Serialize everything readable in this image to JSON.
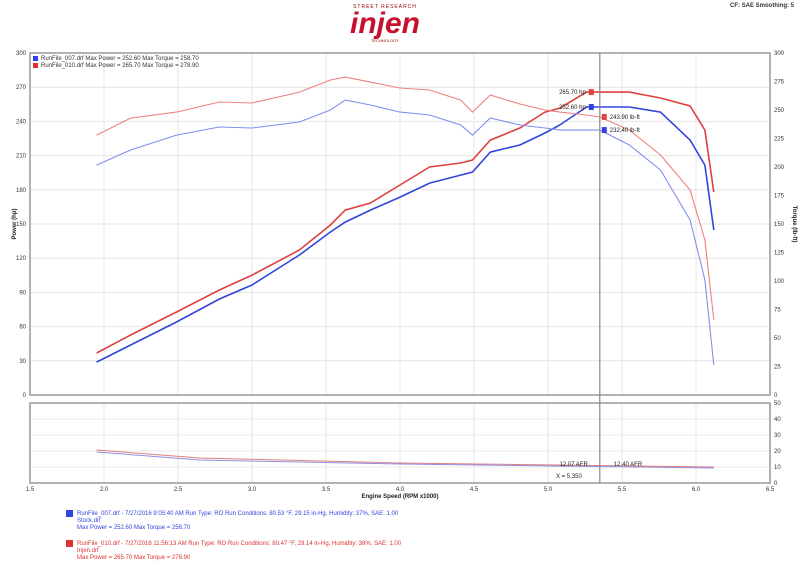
{
  "header": {
    "logo_text": "injen",
    "logo_top": "STREET RESEARCH",
    "logo_sub": "TECHNOLOGY",
    "info": "CF: SAE   Smoothing: 5"
  },
  "legend": [
    {
      "file": "RunFile_007.drf",
      "text": "RunFile_007.drf Max Power = 252.60    Max Torque = 258.70",
      "color": "#3344dd"
    },
    {
      "file": "RunFile_010.drf",
      "text": "RunFile_010.drf Max Power = 265.70    Max Torque = 278.90",
      "color": "#dd3333"
    }
  ],
  "chart_data": {
    "type": "line",
    "xlabel": "Engine Speed (RPM x1000)",
    "ylabel": "Power (hp)",
    "y2label": "Torque (lb-ft)",
    "xlim": [
      1.5,
      6.5
    ],
    "ylim": [
      0,
      300
    ],
    "y2lim": [
      0,
      300
    ],
    "xticks": [
      "1.5",
      "2.0",
      "2.5",
      "3.0",
      "3.5",
      "4.0",
      "4.5",
      "5.0",
      "5.5",
      "6.0",
      "6.5"
    ],
    "yticks": [
      "0",
      "30",
      "60",
      "90",
      "120",
      "150",
      "180",
      "210",
      "240",
      "270",
      "300"
    ],
    "y2ticks": [
      "0",
      "25",
      "50",
      "75",
      "100",
      "125",
      "150",
      "175",
      "200",
      "225",
      "250",
      "275",
      "300"
    ],
    "grid": true,
    "legend_position": "top-left",
    "x": [
      1.95,
      2.18,
      2.49,
      2.78,
      3.0,
      3.32,
      3.53,
      3.63,
      3.8,
      4.0,
      4.2,
      4.41,
      4.49,
      4.61,
      4.81,
      4.98,
      5.08,
      5.26,
      5.35,
      5.55,
      5.76,
      5.96,
      6.06,
      6.12
    ],
    "series": [
      {
        "name": "RunFile_010.drf",
        "quantity": "power",
        "axis": "left",
        "color": "#e04040",
        "values": [
          36.8,
          52.6,
          72.8,
          92.1,
          105.2,
          127.2,
          149.1,
          162.2,
          168.4,
          184.2,
          200.0,
          203.5,
          206.1,
          223.6,
          234.2,
          248.2,
          251.7,
          265.7,
          265.7,
          265.7,
          260.5,
          253.5,
          232.4,
          178.0
        ]
      },
      {
        "name": "RunFile_007.drf",
        "quantity": "power",
        "axis": "left",
        "color": "#3344dd",
        "values": [
          28.9,
          43.9,
          64.0,
          84.2,
          96.5,
          122.8,
          143.0,
          151.7,
          162.2,
          173.6,
          185.9,
          192.9,
          195.6,
          213.1,
          219.3,
          229.8,
          236.8,
          252.6,
          252.6,
          252.6,
          248.2,
          223.6,
          201.7,
          144.7
        ]
      },
      {
        "name": "RunFile_010.drf",
        "quantity": "torque",
        "axis": "right",
        "color": "#f08080",
        "values": [
          228.0,
          242.9,
          248.2,
          257.0,
          256.1,
          265.7,
          276.3,
          278.9,
          274.5,
          269.3,
          267.5,
          258.7,
          248.2,
          263.2,
          255.3,
          250.0,
          248.2,
          245.6,
          243.9,
          232.4,
          210.5,
          179.8,
          136.0,
          65.8
        ]
      },
      {
        "name": "RunFile_007.drf",
        "quantity": "torque",
        "axis": "right",
        "color": "#8090ee",
        "values": [
          201.7,
          214.9,
          228.0,
          235.1,
          234.2,
          239.5,
          250.0,
          258.7,
          254.4,
          248.2,
          245.6,
          236.8,
          228.0,
          243.0,
          236.8,
          234.2,
          232.4,
          232.4,
          232.4,
          219.3,
          197.4,
          153.5,
          100.9,
          26.3
        ]
      }
    ],
    "cursor_x": 5.35,
    "annotations": [
      {
        "text": "265.70 hp",
        "color": "#e04040"
      },
      {
        "text": "252.60 hp",
        "color": "#3344dd"
      },
      {
        "text": "243.90 lb-ft",
        "color": "#e04040"
      },
      {
        "text": "232.40 lb-ft",
        "color": "#3344dd"
      }
    ],
    "lower": {
      "ylim": [
        0,
        50
      ],
      "yticks": [
        "0",
        "10",
        "20",
        "30",
        "40",
        "50"
      ],
      "x": [
        1.95,
        2.65,
        4.0,
        6.12
      ],
      "series": [
        {
          "name": "RunFile_010.drf",
          "color": "#e08080",
          "values": [
            20.6,
            15.6,
            12.5,
            10.0
          ]
        },
        {
          "name": "RunFile_007.drf",
          "color": "#9090e0",
          "values": [
            19.4,
            14.4,
            11.9,
            9.4
          ]
        }
      ],
      "annotations": [
        {
          "text": "12.07 AFR",
          "color": "#3344dd"
        },
        {
          "text": "12.40 AFR",
          "color": "#e04040"
        },
        {
          "text": "X = 5.350",
          "color": "#222"
        }
      ]
    }
  },
  "footer": [
    {
      "line1": "RunFile_007.drf - 7/27/2016 9:05:40 AM  Run Type: RO  Run Conditions: 80.53 °F, 29.15 in-Hg, Humidity: 37%, SAE: 1.00",
      "line2": "Stock.drf",
      "line3": "Max Power = 252.60   Max Torque = 258.70",
      "color": "#3344dd"
    },
    {
      "line1": "RunFile_010.drf - 7/27/2016 11:56:13 AM  Run Type: RO  Run Conditions: 80.47 °F, 29.14 in-Hg, Humidity: 38%, SAE: 1.00",
      "line2": "Injen.drf",
      "line3": "Max Power = 265.70   Max Torque = 278.90",
      "color": "#dd3333"
    }
  ]
}
